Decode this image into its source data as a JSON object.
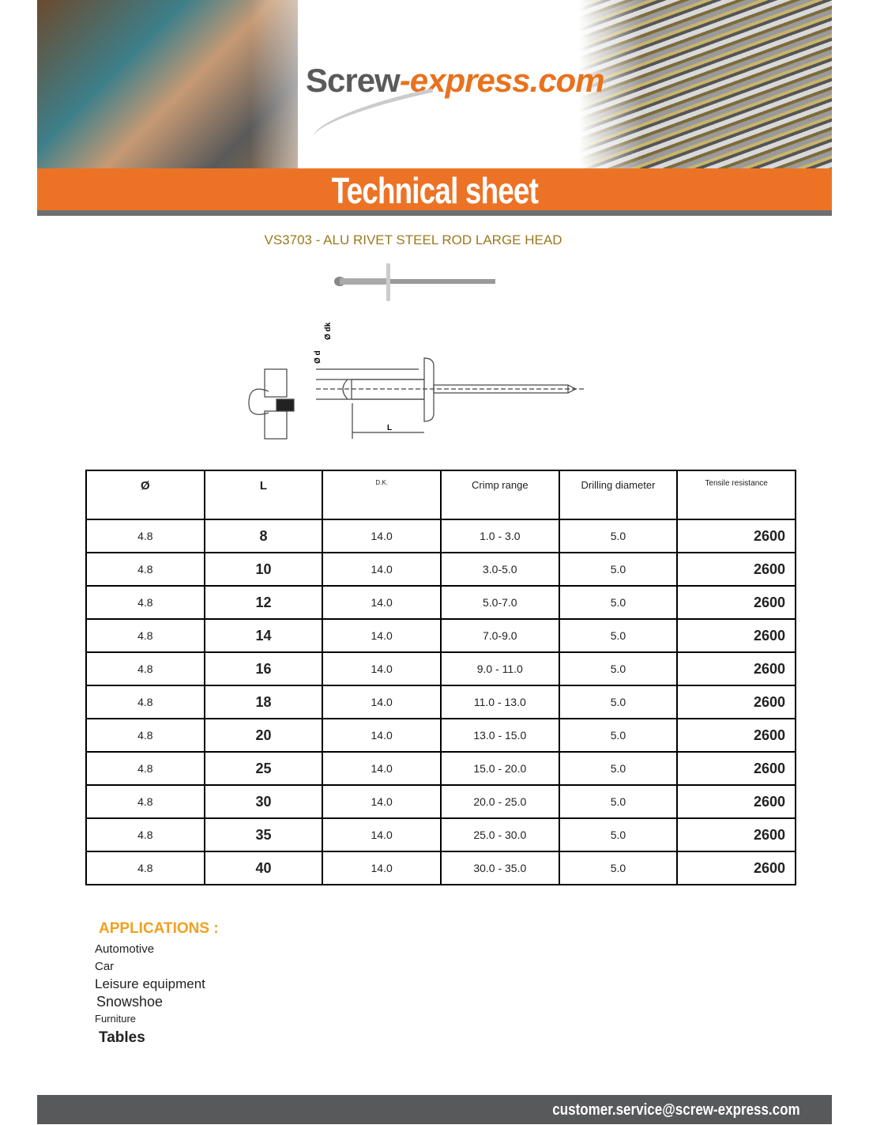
{
  "header": {
    "logo_part1": "Screw",
    "logo_part2": "-express.com",
    "banner_title": "Technical sheet",
    "brand_color": "#ec7326"
  },
  "product": {
    "title": "VS3703 - ALU RIVET STEEL ROD LARGE HEAD",
    "diagram_labels": {
      "dk": "Ø dk",
      "d": "Ø d",
      "L": "L"
    }
  },
  "table": {
    "headers": [
      "Ø",
      "L",
      "D.K.",
      "Crimp range",
      "Drilling diameter",
      "Tensile resistance"
    ],
    "rows": [
      [
        "4.8",
        "8",
        "14.0",
        "1.0 - 3.0",
        "5.0",
        "2600"
      ],
      [
        "4.8",
        "10",
        "14.0",
        "3.0-5.0",
        "5.0",
        "2600"
      ],
      [
        "4.8",
        "12",
        "14.0",
        "5.0-7.0",
        "5.0",
        "2600"
      ],
      [
        "4.8",
        "14",
        "14.0",
        "7.0-9.0",
        "5.0",
        "2600"
      ],
      [
        "4.8",
        "16",
        "14.0",
        "9.0 - 11.0",
        "5.0",
        "2600"
      ],
      [
        "4.8",
        "18",
        "14.0",
        "11.0 - 13.0",
        "5.0",
        "2600"
      ],
      [
        "4.8",
        "20",
        "14.0",
        "13.0 - 15.0",
        "5.0",
        "2600"
      ],
      [
        "4.8",
        "25",
        "14.0",
        "15.0 - 20.0",
        "5.0",
        "2600"
      ],
      [
        "4.8",
        "30",
        "14.0",
        "20.0 - 25.0",
        "5.0",
        "2600"
      ],
      [
        "4.8",
        "35",
        "14.0",
        "25.0 - 30.0",
        "5.0",
        "2600"
      ],
      [
        "4.8",
        "40",
        "14.0",
        "30.0 - 35.0",
        "5.0",
        "2600"
      ]
    ]
  },
  "applications": {
    "title": "APPLICATIONS :",
    "items": [
      {
        "label": "Automotive",
        "size": 15
      },
      {
        "label": "Car",
        "size": 15
      },
      {
        "label": "Leisure equipment",
        "size": 17
      },
      {
        "label": "Snowshoe",
        "size": 18
      },
      {
        "label": "Furniture",
        "size": 13
      },
      {
        "label": "Tables",
        "size": 19
      }
    ]
  },
  "footer": {
    "email": "customer.service@screw-express.com"
  }
}
